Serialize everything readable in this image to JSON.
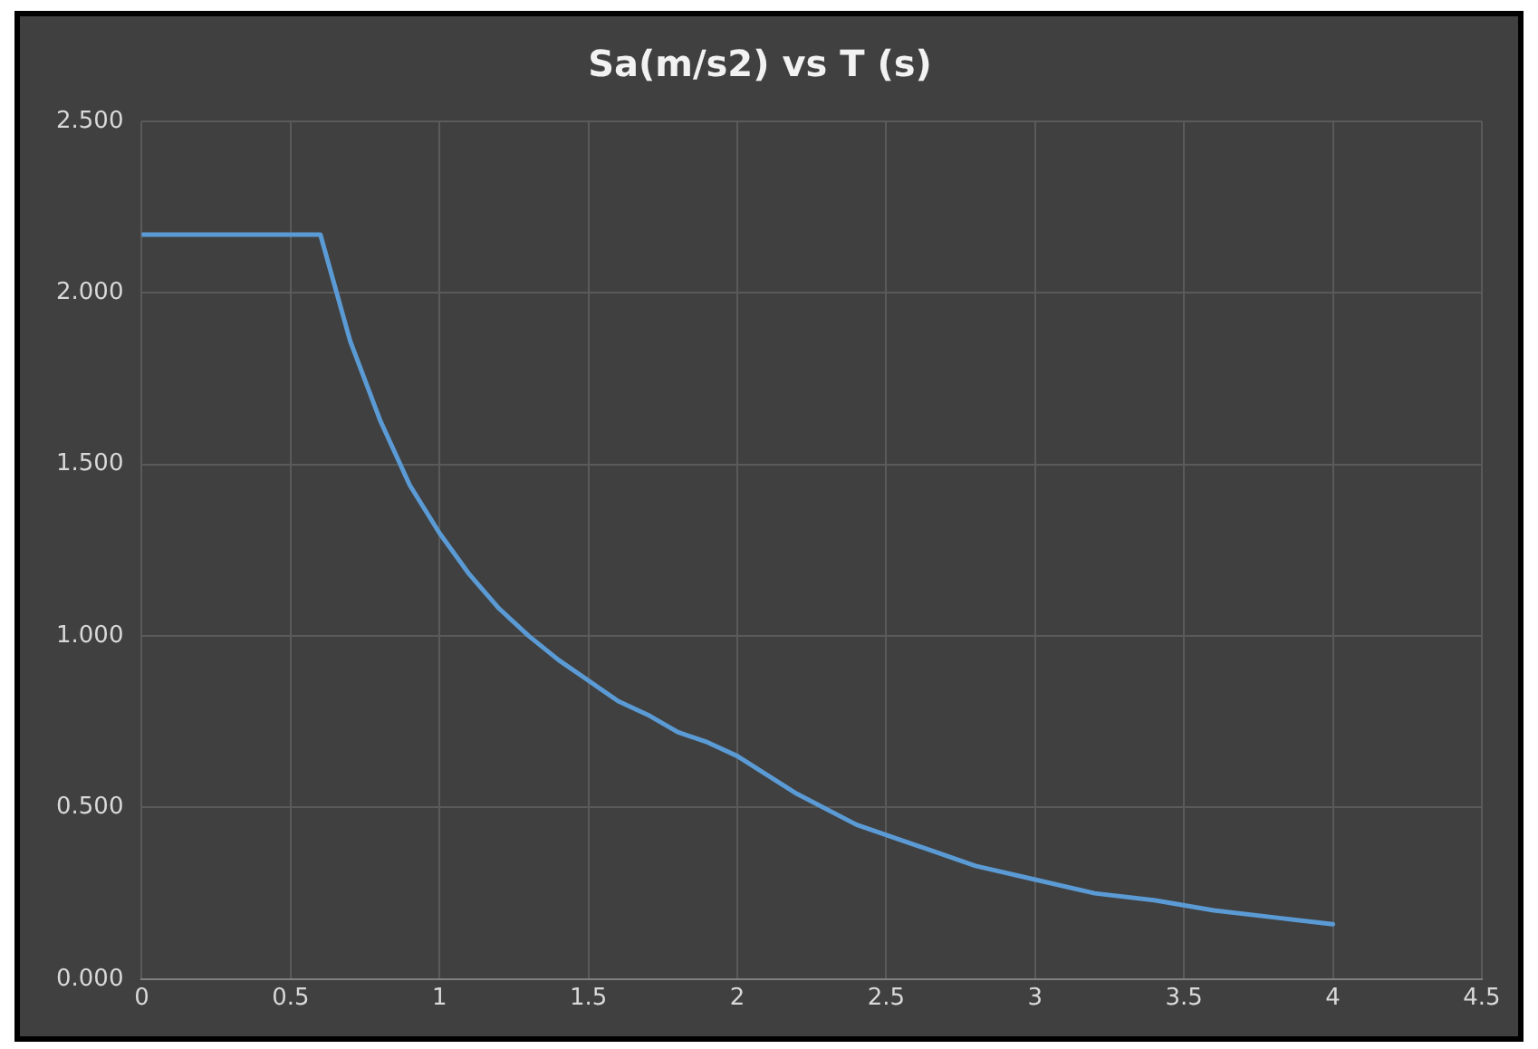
{
  "chart_data": {
    "type": "line",
    "title": "Sa(m/s2) vs T (s)",
    "x": [
      0,
      0.6,
      0.7,
      0.8,
      0.9,
      1.0,
      1.1,
      1.2,
      1.3,
      1.4,
      1.5,
      1.6,
      1.7,
      1.8,
      1.9,
      2.0,
      2.2,
      2.4,
      2.6,
      2.8,
      3.0,
      3.2,
      3.4,
      3.6,
      3.8,
      4.0
    ],
    "series": [
      {
        "color": "#5b9bd5",
        "values": [
          2.17,
          2.17,
          1.86,
          1.63,
          1.44,
          1.3,
          1.18,
          1.08,
          1.0,
          0.93,
          0.87,
          0.81,
          0.77,
          0.72,
          0.69,
          0.65,
          0.54,
          0.45,
          0.39,
          0.33,
          0.29,
          0.25,
          0.23,
          0.2,
          0.18,
          0.16
        ]
      }
    ],
    "xlim": [
      0,
      4.5
    ],
    "xticks": [
      0,
      0.5,
      1,
      1.5,
      2,
      2.5,
      3,
      3.5,
      4,
      4.5
    ],
    "ylim": [
      0,
      2.5
    ],
    "yticks": [
      {
        "value": 0,
        "label": "0.000"
      },
      {
        "value": 0.5,
        "label": "0.500"
      },
      {
        "value": 1,
        "label": "1.000"
      },
      {
        "value": 1.5,
        "label": "1.500"
      },
      {
        "value": 2,
        "label": "2.000"
      },
      {
        "value": 2.5,
        "label": "2.500"
      }
    ],
    "grid": true,
    "marker": "none",
    "line_style": "solid"
  }
}
